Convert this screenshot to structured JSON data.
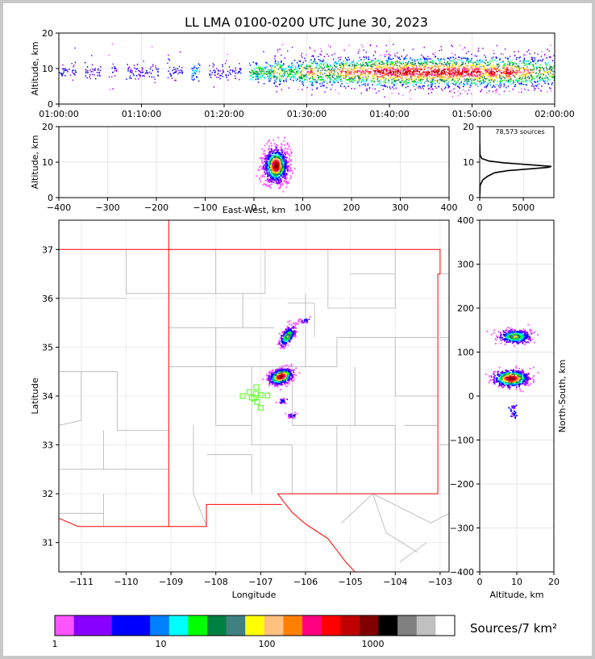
{
  "title": "LL LMA 0100-0200 UTC June 30, 2023",
  "colors": {
    "background": "#c8c8c8",
    "frame": "#ffffff",
    "state_border": "#ff0000",
    "county_border": "#b4b4b4",
    "station_marker": "#66ff33"
  },
  "chart_data": [
    {
      "id": "time-altitude",
      "type": "scatter",
      "ylabel": "Altitude, km",
      "ylim": [
        0,
        20
      ],
      "yticks": [
        "0",
        "10",
        "20"
      ],
      "xlim": [
        "01:00:00",
        "02:00:00"
      ],
      "xticks": [
        "01:00:00",
        "01:10:00",
        "01:20:00",
        "01:30:00",
        "01:40:00",
        "01:50:00",
        "02:00:00"
      ],
      "activity_by_minute": [
        1,
        1,
        0,
        1,
        1,
        0,
        1,
        0,
        1,
        1,
        1,
        1,
        0,
        1,
        1,
        0,
        2,
        0,
        1,
        1,
        1,
        1,
        0,
        3,
        3,
        3,
        4,
        3,
        3,
        4,
        5,
        4,
        4,
        4,
        5,
        5,
        5,
        5,
        6,
        6,
        7,
        6,
        7,
        6,
        6,
        7,
        6,
        7,
        6,
        6,
        6,
        5,
        6,
        5,
        6,
        5,
        5,
        4,
        4,
        4
      ],
      "altitude_mode_km": 9,
      "altitude_spread_km": [
        3,
        17
      ]
    },
    {
      "id": "east-west-altitude",
      "type": "scatter",
      "xlabel": "East-West, km",
      "ylabel": "Altitude, km",
      "xlim": [
        -400,
        400
      ],
      "ylim": [
        0,
        20
      ],
      "xticks": [
        "−400",
        "−300",
        "−200",
        "−100",
        "0",
        "100",
        "200",
        "300",
        "400"
      ],
      "yticks": [
        "0",
        "10",
        "20"
      ],
      "cluster_center_km": [
        45,
        9
      ]
    },
    {
      "id": "altitude-histogram",
      "type": "line",
      "annotation": "78,573 sources",
      "xlim": [
        0,
        8500
      ],
      "ylim": [
        0,
        20
      ],
      "xticks": [
        "0",
        "5000"
      ],
      "yticks": [
        "0",
        "10",
        "20"
      ],
      "profile": [
        {
          "alt": 0.2,
          "count": 0
        },
        {
          "alt": 3.5,
          "count": 60
        },
        {
          "alt": 5.0,
          "count": 350
        },
        {
          "alt": 6.0,
          "count": 900
        },
        {
          "alt": 7.0,
          "count": 1700
        },
        {
          "alt": 7.6,
          "count": 3200
        },
        {
          "alt": 8.0,
          "count": 5200
        },
        {
          "alt": 8.5,
          "count": 7800
        },
        {
          "alt": 8.8,
          "count": 8200
        },
        {
          "alt": 9.3,
          "count": 5500
        },
        {
          "alt": 9.8,
          "count": 2800
        },
        {
          "alt": 10.3,
          "count": 1100
        },
        {
          "alt": 11.0,
          "count": 250
        },
        {
          "alt": 12.0,
          "count": 40
        },
        {
          "alt": 16.0,
          "count": 0
        },
        {
          "alt": 20.0,
          "count": 0
        }
      ]
    },
    {
      "id": "plan-view-map",
      "type": "scatter",
      "xlabel": "Longitude",
      "ylabel": "Latitude",
      "xlim": [
        -111.5,
        -102.8
      ],
      "ylim": [
        30.4,
        37.6
      ],
      "xticks": [
        "−111",
        "−110",
        "−109",
        "−108",
        "−107",
        "−106",
        "−105",
        "−104",
        "−103"
      ],
      "yticks": [
        "31",
        "32",
        "33",
        "34",
        "35",
        "36",
        "37"
      ],
      "clusters": [
        {
          "lon": -106.55,
          "lat": 34.4,
          "intensity": "high"
        },
        {
          "lon": -106.4,
          "lat": 35.22,
          "intensity": "medium"
        },
        {
          "lon": -106.0,
          "lat": 35.55,
          "intensity": "low"
        },
        {
          "lon": -106.5,
          "lat": 33.9,
          "intensity": "low"
        },
        {
          "lon": -106.3,
          "lat": 33.6,
          "intensity": "low"
        }
      ],
      "stations": [
        {
          "lon": -107.1,
          "lat": 34.18
        },
        {
          "lon": -107.25,
          "lat": 34.08
        },
        {
          "lon": -107.4,
          "lat": 34.0
        },
        {
          "lon": -107.2,
          "lat": 33.97
        },
        {
          "lon": -107.0,
          "lat": 34.02
        },
        {
          "lon": -107.15,
          "lat": 33.95
        },
        {
          "lon": -106.85,
          "lat": 34.01
        },
        {
          "lon": -107.08,
          "lat": 33.88
        },
        {
          "lon": -107.0,
          "lat": 33.76
        },
        {
          "lon": -107.1,
          "lat": 34.05
        }
      ]
    },
    {
      "id": "altitude-north-south",
      "type": "scatter",
      "xlabel": "Altitude, km",
      "ylabel": "North-South, km",
      "xlim": [
        0,
        20
      ],
      "ylim": [
        -400,
        400
      ],
      "xticks": [
        "0",
        "10",
        "20"
      ],
      "yticks": [
        "−400",
        "−300",
        "−200",
        "−100",
        "0",
        "100",
        "200",
        "300",
        "400"
      ],
      "clusters": [
        {
          "alt": 8.5,
          "ns": 40,
          "intensity": "high"
        },
        {
          "alt": 9.5,
          "ns": 135,
          "intensity": "medium"
        }
      ]
    },
    {
      "id": "density-colorbar",
      "type": "heatmap",
      "label": "Sources/7 km²",
      "scale": "log",
      "ticks": [
        "1",
        "10",
        "100",
        "1000"
      ],
      "colors": [
        "#ff55ff",
        "#8800ff",
        "#8800ff",
        "#0000ff",
        "#0000ff",
        "#0080ff",
        "#00ffff",
        "#00ff00",
        "#008040",
        "#408080",
        "#ffff00",
        "#ffc080",
        "#ff8000",
        "#ff0080",
        "#ff0000",
        "#c00000",
        "#800000",
        "#000000",
        "#808080",
        "#c0c0c0",
        "#ffffff"
      ]
    }
  ]
}
